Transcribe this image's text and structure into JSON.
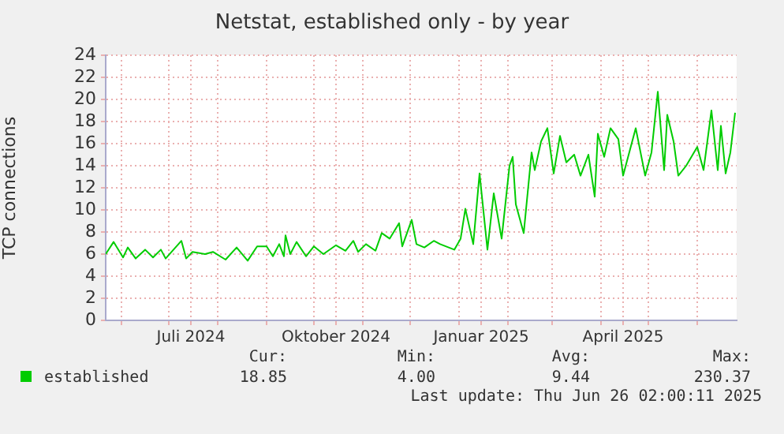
{
  "chart_data": {
    "type": "line",
    "title": "Netstat, established only - by year",
    "ylabel": "TCP connections",
    "xlim": [
      "2024-05-22",
      "2025-06-26"
    ],
    "xticks": [
      {
        "value": "2024-06-01",
        "label": null
      },
      {
        "value": "2024-07-01",
        "label": null
      },
      {
        "value": "2024-07-15",
        "label": "Juli 2024"
      },
      {
        "value": "2024-08-01",
        "label": null
      },
      {
        "value": "2024-09-01",
        "label": null
      },
      {
        "value": "2024-10-01",
        "label": null
      },
      {
        "value": "2024-10-15",
        "label": "Oktober 2024"
      },
      {
        "value": "2024-11-01",
        "label": null
      },
      {
        "value": "2024-12-01",
        "label": null
      },
      {
        "value": "2025-01-01",
        "label": null
      },
      {
        "value": "2025-01-15",
        "label": "Januar 2025"
      },
      {
        "value": "2025-02-01",
        "label": null
      },
      {
        "value": "2025-03-01",
        "label": null
      },
      {
        "value": "2025-04-01",
        "label": null
      },
      {
        "value": "2025-04-15",
        "label": "April 2025"
      },
      {
        "value": "2025-05-01",
        "label": null
      },
      {
        "value": "2025-06-01",
        "label": null
      }
    ],
    "ylim": [
      0,
      24
    ],
    "yticks": [
      0,
      2,
      4,
      6,
      8,
      10,
      12,
      14,
      16,
      18,
      20,
      22,
      24
    ],
    "grid": true,
    "legend": "bottom left",
    "marker": "none",
    "line_style": "solid",
    "series": [
      {
        "name": "established",
        "color": "#00cc00",
        "x": [
          "2024-05-22",
          "2024-05-27",
          "2024-06-02",
          "2024-06-05",
          "2024-06-10",
          "2024-06-16",
          "2024-06-21",
          "2024-06-26",
          "2024-06-29",
          "2024-07-09",
          "2024-07-12",
          "2024-07-16",
          "2024-07-24",
          "2024-07-29",
          "2024-08-06",
          "2024-08-13",
          "2024-08-20",
          "2024-08-26",
          "2024-09-01",
          "2024-09-05",
          "2024-09-09",
          "2024-09-12",
          "2024-09-13",
          "2024-09-16",
          "2024-09-20",
          "2024-09-26",
          "2024-10-01",
          "2024-10-07",
          "2024-10-15",
          "2024-10-21",
          "2024-10-26",
          "2024-10-29",
          "2024-11-03",
          "2024-11-09",
          "2024-11-13",
          "2024-11-18",
          "2024-11-24",
          "2024-11-26",
          "2024-12-02",
          "2024-12-05",
          "2024-12-10",
          "2024-12-16",
          "2024-12-20",
          "2024-12-29",
          "2025-01-02",
          "2025-01-05",
          "2025-01-10",
          "2025-01-14",
          "2025-01-19",
          "2025-01-23",
          "2025-01-28",
          "2025-02-02",
          "2025-02-04",
          "2025-02-06",
          "2025-02-11",
          "2025-02-16",
          "2025-02-18",
          "2025-02-22",
          "2025-02-26",
          "2025-03-02",
          "2025-03-06",
          "2025-03-10",
          "2025-03-15",
          "2025-03-19",
          "2025-03-24",
          "2025-03-28",
          "2025-03-30",
          "2025-04-03",
          "2025-04-07",
          "2025-04-12",
          "2025-04-15",
          "2025-04-23",
          "2025-04-29",
          "2025-05-03",
          "2025-05-07",
          "2025-05-11",
          "2025-05-13",
          "2025-05-17",
          "2025-05-20",
          "2025-05-25",
          "2025-06-01",
          "2025-06-05",
          "2025-06-10",
          "2025-06-14",
          "2025-06-16",
          "2025-06-19",
          "2025-06-22",
          "2025-06-25"
        ],
        "values": [
          6.0,
          7.1,
          5.7,
          6.6,
          5.6,
          6.4,
          5.7,
          6.4,
          5.6,
          7.2,
          5.6,
          6.2,
          6.0,
          6.2,
          5.5,
          6.6,
          5.4,
          6.7,
          6.7,
          5.8,
          6.9,
          5.8,
          7.7,
          6.0,
          7.1,
          5.8,
          6.7,
          6.0,
          6.8,
          6.3,
          7.2,
          6.2,
          6.9,
          6.3,
          7.9,
          7.4,
          8.8,
          6.7,
          9.1,
          6.9,
          6.6,
          7.2,
          6.9,
          6.4,
          7.4,
          10.1,
          6.9,
          13.3,
          6.4,
          11.5,
          7.4,
          14.0,
          14.8,
          10.5,
          7.9,
          15.2,
          13.6,
          16.2,
          17.4,
          13.3,
          16.7,
          14.3,
          15.0,
          13.1,
          15.0,
          11.2,
          16.9,
          14.8,
          17.4,
          16.4,
          13.1,
          17.4,
          13.1,
          15.2,
          20.7,
          13.6,
          18.6,
          16.2,
          13.1,
          14.0,
          15.7,
          13.6,
          19.0,
          13.6,
          17.6,
          13.3,
          15.2,
          18.8
        ]
      }
    ],
    "annotations": [
      "Cur:",
      "Min:",
      "Avg:",
      "Max:",
      "18.85",
      "4.00",
      "9.44",
      "230.37",
      "Last update: Thu Jun 26 02:00:11 2025"
    ]
  }
}
